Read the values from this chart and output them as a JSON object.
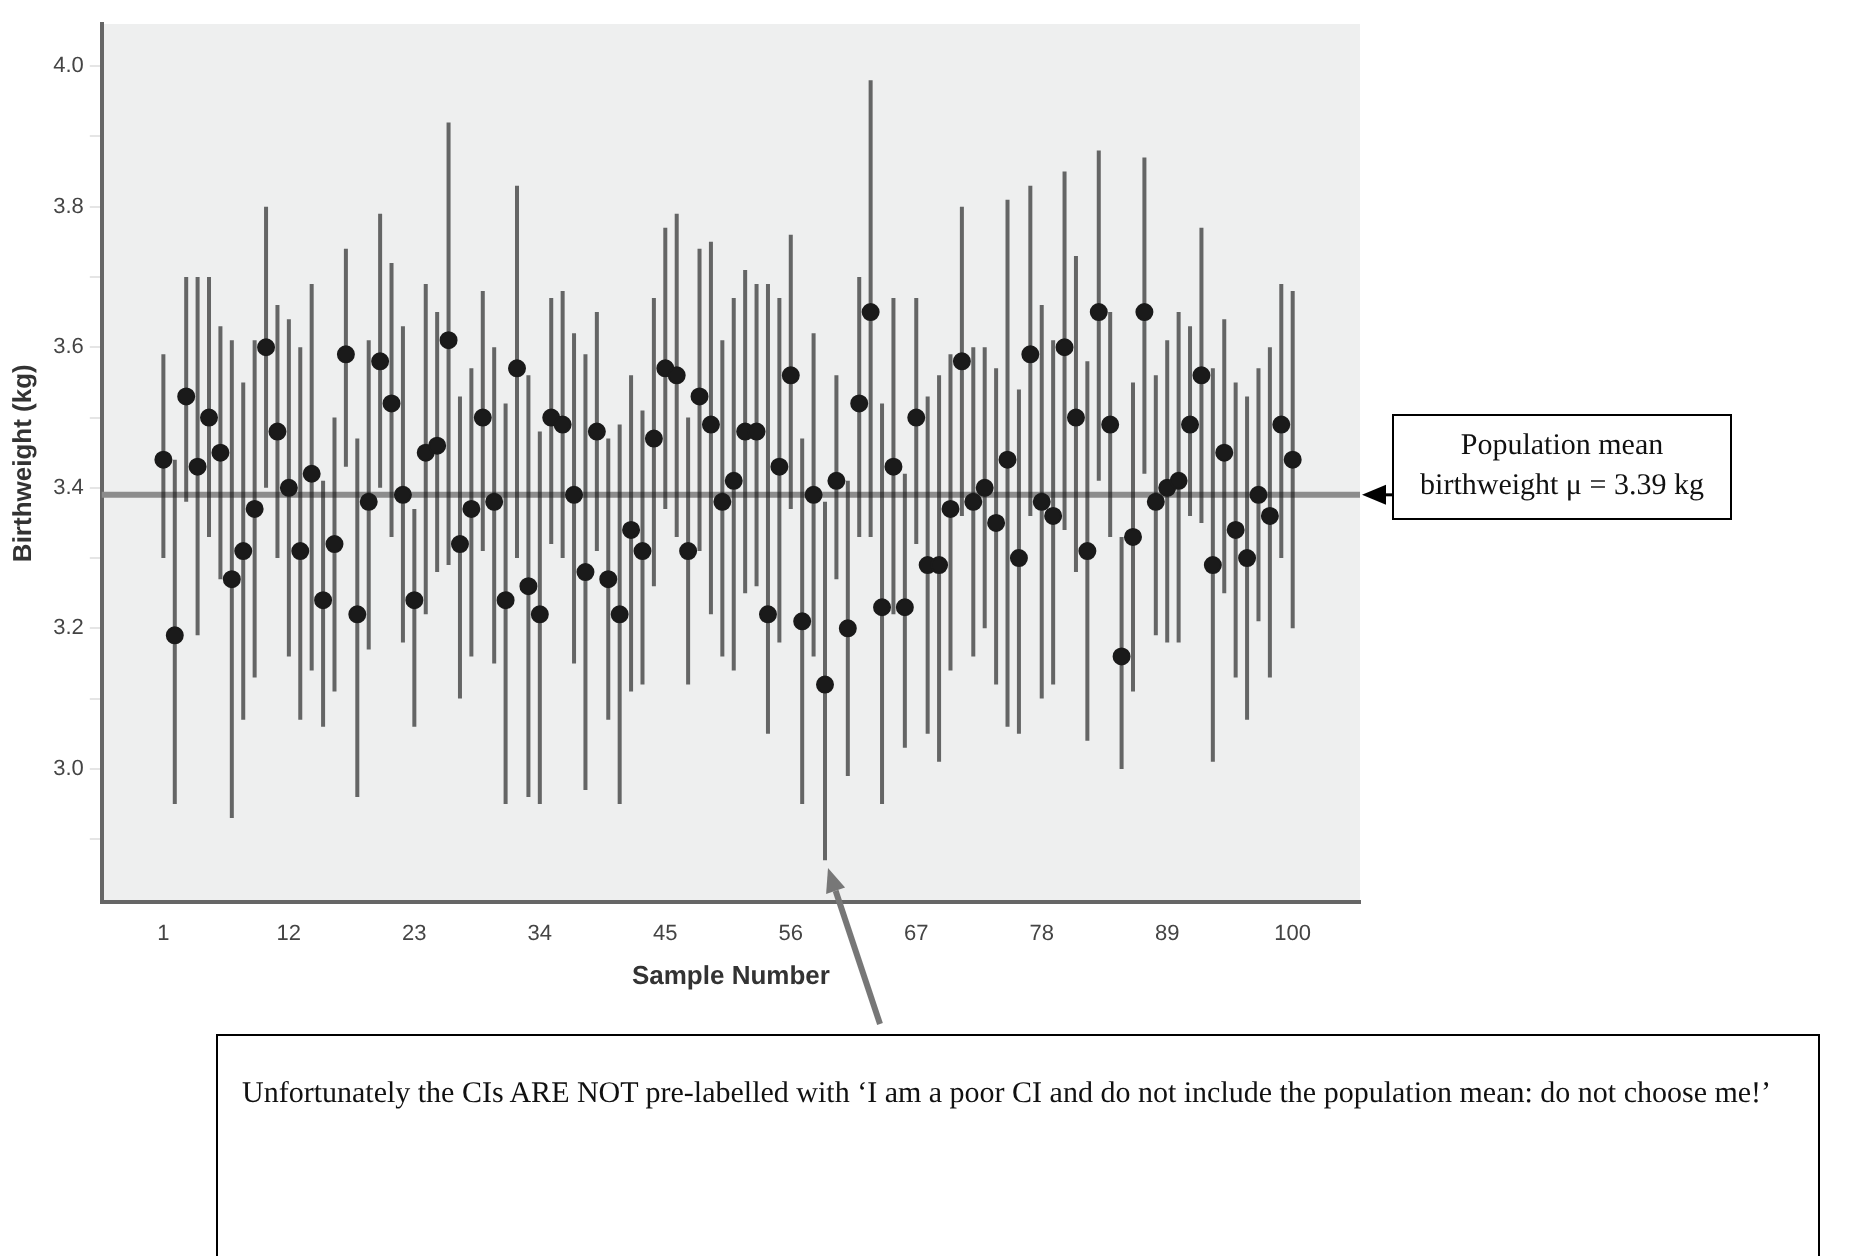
{
  "chart_data": {
    "type": "scatter",
    "xlabel": "Sample Number",
    "ylabel": "Birthweight (kg)",
    "x": [
      1,
      2,
      3,
      4,
      5,
      6,
      7,
      8,
      9,
      10,
      11,
      12,
      13,
      14,
      15,
      16,
      17,
      18,
      19,
      20,
      21,
      22,
      23,
      24,
      25,
      26,
      27,
      28,
      29,
      30,
      31,
      32,
      33,
      34,
      35,
      36,
      37,
      38,
      39,
      40,
      41,
      42,
      43,
      44,
      45,
      46,
      47,
      48,
      49,
      50,
      51,
      52,
      53,
      54,
      55,
      56,
      57,
      58,
      59,
      60,
      61,
      62,
      63,
      64,
      65,
      66,
      67,
      68,
      69,
      70,
      71,
      72,
      73,
      74,
      75,
      76,
      77,
      78,
      79,
      80,
      81,
      82,
      83,
      84,
      85,
      86,
      87,
      88,
      89,
      90,
      91,
      92,
      93,
      94,
      95,
      96,
      97,
      98,
      99,
      100
    ],
    "series": [
      {
        "color": "#1a1a1a",
        "values": [
          3.44,
          3.19,
          3.53,
          3.43,
          3.5,
          3.45,
          3.27,
          3.31,
          3.37,
          3.6,
          3.48,
          3.4,
          3.31,
          3.42,
          3.24,
          3.32,
          3.59,
          3.22,
          3.38,
          3.58,
          3.52,
          3.39,
          3.24,
          3.45,
          3.46,
          3.61,
          3.32,
          3.37,
          3.5,
          3.38,
          3.24,
          3.57,
          3.26,
          3.22,
          3.5,
          3.49,
          3.39,
          3.28,
          3.48,
          3.27,
          3.22,
          3.34,
          3.31,
          3.47,
          3.57,
          3.56,
          3.31,
          3.53,
          3.49,
          3.38,
          3.41,
          3.48,
          3.48,
          3.22,
          3.43,
          3.56,
          3.21,
          3.39,
          3.12,
          3.41,
          3.2,
          3.52,
          3.65,
          3.23,
          3.43,
          3.23,
          3.5,
          3.29,
          3.29,
          3.37,
          3.58,
          3.38,
          3.4,
          3.35,
          3.44,
          3.3,
          3.59,
          3.38,
          3.36,
          3.6,
          3.5,
          3.31,
          3.65,
          3.49,
          3.16,
          3.33,
          3.65,
          3.38,
          3.4,
          3.41,
          3.49,
          3.56,
          3.29,
          3.45,
          3.34,
          3.3,
          3.39,
          3.36,
          3.49,
          3.44
        ],
        "errors": [
          [
            3.3,
            3.59
          ],
          [
            2.95,
            3.44
          ],
          [
            3.38,
            3.7
          ],
          [
            3.19,
            3.7
          ],
          [
            3.33,
            3.7
          ],
          [
            3.27,
            3.63
          ],
          [
            2.93,
            3.61
          ],
          [
            3.07,
            3.55
          ],
          [
            3.13,
            3.61
          ],
          [
            3.4,
            3.8
          ],
          [
            3.3,
            3.66
          ],
          [
            3.16,
            3.64
          ],
          [
            3.07,
            3.6
          ],
          [
            3.14,
            3.69
          ],
          [
            3.06,
            3.41
          ],
          [
            3.11,
            3.5
          ],
          [
            3.43,
            3.74
          ],
          [
            2.96,
            3.47
          ],
          [
            3.17,
            3.61
          ],
          [
            3.4,
            3.79
          ],
          [
            3.33,
            3.72
          ],
          [
            3.18,
            3.63
          ],
          [
            3.06,
            3.37
          ],
          [
            3.22,
            3.69
          ],
          [
            3.28,
            3.65
          ],
          [
            3.29,
            3.92
          ],
          [
            3.1,
            3.53
          ],
          [
            3.16,
            3.57
          ],
          [
            3.31,
            3.68
          ],
          [
            3.15,
            3.6
          ],
          [
            2.95,
            3.52
          ],
          [
            3.3,
            3.83
          ],
          [
            2.96,
            3.56
          ],
          [
            2.95,
            3.48
          ],
          [
            3.32,
            3.67
          ],
          [
            3.3,
            3.68
          ],
          [
            3.15,
            3.62
          ],
          [
            2.97,
            3.59
          ],
          [
            3.31,
            3.65
          ],
          [
            3.07,
            3.47
          ],
          [
            2.95,
            3.49
          ],
          [
            3.11,
            3.56
          ],
          [
            3.12,
            3.51
          ],
          [
            3.26,
            3.67
          ],
          [
            3.37,
            3.77
          ],
          [
            3.33,
            3.79
          ],
          [
            3.12,
            3.5
          ],
          [
            3.31,
            3.74
          ],
          [
            3.22,
            3.75
          ],
          [
            3.16,
            3.61
          ],
          [
            3.14,
            3.67
          ],
          [
            3.25,
            3.71
          ],
          [
            3.26,
            3.69
          ],
          [
            3.05,
            3.69
          ],
          [
            3.18,
            3.67
          ],
          [
            3.37,
            3.76
          ],
          [
            2.95,
            3.47
          ],
          [
            3.16,
            3.62
          ],
          [
            2.87,
            3.38
          ],
          [
            3.27,
            3.56
          ],
          [
            2.99,
            3.41
          ],
          [
            3.33,
            3.7
          ],
          [
            3.33,
            3.98
          ],
          [
            2.95,
            3.52
          ],
          [
            3.22,
            3.67
          ],
          [
            3.03,
            3.42
          ],
          [
            3.32,
            3.67
          ],
          [
            3.05,
            3.53
          ],
          [
            3.01,
            3.56
          ],
          [
            3.14,
            3.59
          ],
          [
            3.36,
            3.8
          ],
          [
            3.16,
            3.6
          ],
          [
            3.2,
            3.6
          ],
          [
            3.12,
            3.57
          ],
          [
            3.06,
            3.81
          ],
          [
            3.05,
            3.54
          ],
          [
            3.36,
            3.83
          ],
          [
            3.1,
            3.66
          ],
          [
            3.12,
            3.61
          ],
          [
            3.34,
            3.85
          ],
          [
            3.28,
            3.73
          ],
          [
            3.04,
            3.58
          ],
          [
            3.41,
            3.88
          ],
          [
            3.33,
            3.65
          ],
          [
            3.0,
            3.33
          ],
          [
            3.11,
            3.55
          ],
          [
            3.42,
            3.87
          ],
          [
            3.19,
            3.56
          ],
          [
            3.18,
            3.61
          ],
          [
            3.18,
            3.65
          ],
          [
            3.36,
            3.63
          ],
          [
            3.35,
            3.77
          ],
          [
            3.01,
            3.57
          ],
          [
            3.25,
            3.64
          ],
          [
            3.13,
            3.55
          ],
          [
            3.07,
            3.53
          ],
          [
            3.21,
            3.57
          ],
          [
            3.13,
            3.6
          ],
          [
            3.3,
            3.69
          ],
          [
            3.2,
            3.68
          ]
        ]
      }
    ],
    "xlim": [
      -4.4,
      105.9
    ],
    "xticks": [
      1,
      12,
      23,
      34,
      45,
      56,
      67,
      78,
      89,
      100
    ],
    "ylim": [
      2.81,
      4.06
    ],
    "yticks": [
      {
        "value": 2.9,
        "label": null
      },
      {
        "value": 3.0,
        "label": "3.0"
      },
      {
        "value": 3.1,
        "label": null
      },
      {
        "value": 3.2,
        "label": "3.2"
      },
      {
        "value": 3.3,
        "label": null
      },
      {
        "value": 3.4,
        "label": "3.4"
      },
      {
        "value": 3.5,
        "label": null
      },
      {
        "value": 3.6,
        "label": "3.6"
      },
      {
        "value": 3.7,
        "label": null
      },
      {
        "value": 3.8,
        "label": "3.8"
      },
      {
        "value": 3.9,
        "label": null
      },
      {
        "value": 4.0,
        "label": "4.0"
      }
    ],
    "ref_lines": [
      {
        "axis": "y",
        "value": 3.39,
        "label": "Population mean birthweight μ = 3.39 kg",
        "color": "#8c8c8c"
      }
    ],
    "annotations": [
      "Unfortunately the CIs ARE NOT pre-labelled with ‘I am a poor CI and do not include the population mean: do not choose me!’"
    ],
    "marker": "circle",
    "grid": false,
    "legend": false
  }
}
